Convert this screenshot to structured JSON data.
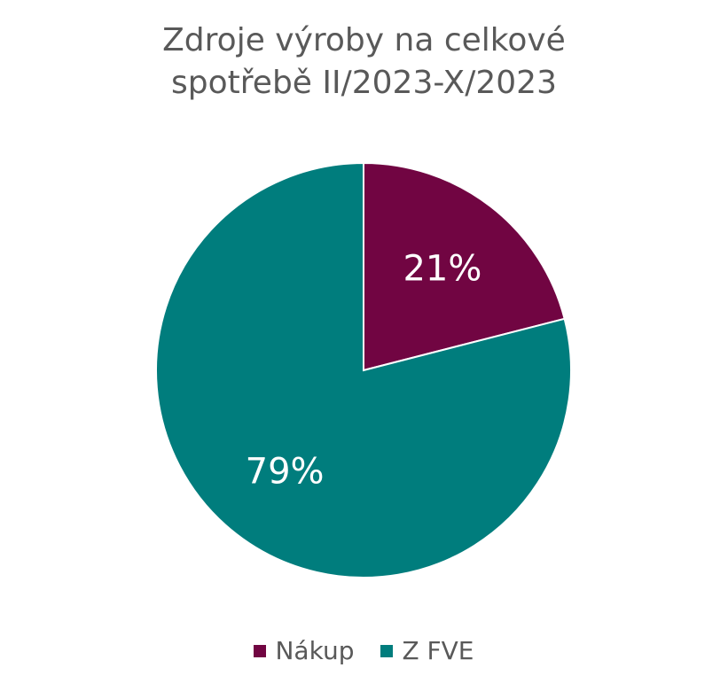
{
  "chart_data": {
    "type": "pie",
    "title_lines": [
      "Zdroje výroby na celkové",
      "spotřebě II/2023-X/2023"
    ],
    "categories": [
      "Nákup",
      "Z FVE"
    ],
    "values": [
      21,
      79
    ],
    "data_labels": [
      "21%",
      "79%"
    ],
    "colors": [
      "#710542",
      "#007D7D"
    ],
    "legend_position": "bottom"
  }
}
